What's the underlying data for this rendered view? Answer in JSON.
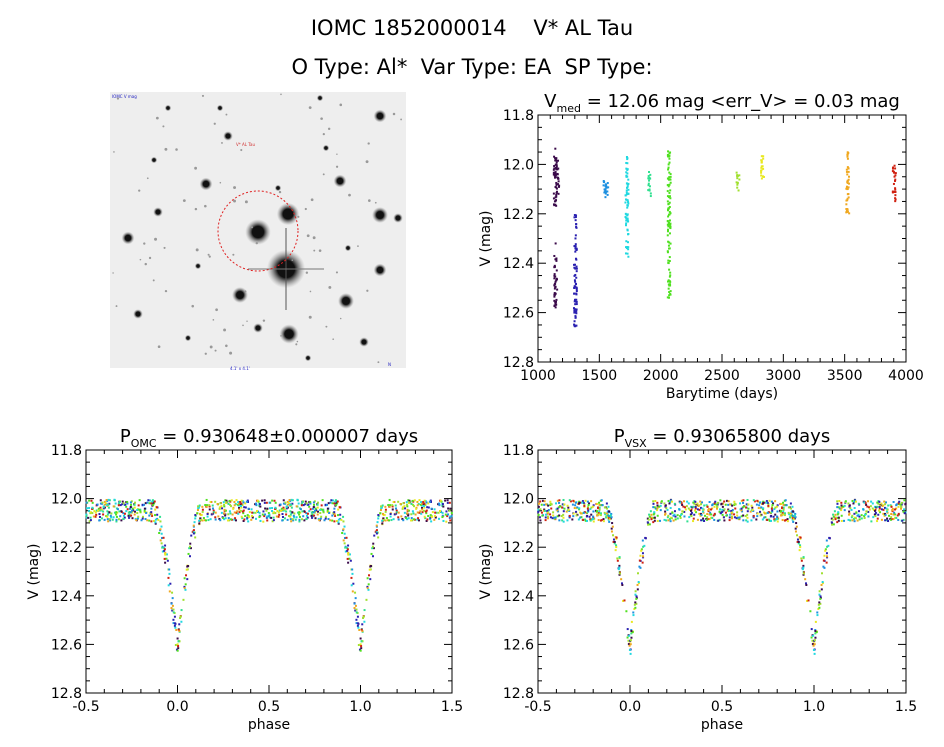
{
  "header": {
    "title": "IOMC 1852000014    V* AL Tau",
    "subtitle": "O Type: Al*  Var Type: EA  SP Type:"
  },
  "finder_image": {
    "tl_label": "IOMC V mag",
    "object_label": "V* AL Tau",
    "bottom_label": "4.1' x 4.1'",
    "br_label": "N",
    "colors": {
      "circle": "#e02020",
      "labels": "#2020c0",
      "object_label": "#d03030"
    }
  },
  "chart_data": [
    {
      "id": "lightcurve",
      "type": "scatter",
      "title_main": "V",
      "title_sub": "med",
      "title_rest": " = 12.06 mag <err_V> = 0.03 mag",
      "xlabel": "Barytime (days)",
      "ylabel": "V (mag)",
      "xlim": [
        1000,
        4000
      ],
      "ylim": [
        12.8,
        11.8
      ],
      "y_reversed": true,
      "xticks": [
        1000,
        1500,
        2000,
        2500,
        3000,
        3500,
        4000
      ],
      "yticks": [
        11.8,
        12.0,
        12.2,
        12.4,
        12.6,
        12.8
      ],
      "tick_labels_x": [
        "1000",
        "1500",
        "2000",
        "2500",
        "3000",
        "3500",
        "4000"
      ],
      "tick_labels_y": [
        "11.8",
        "12.0",
        "12.2",
        "12.4",
        "12.6",
        "12.8"
      ],
      "groups": [
        {
          "x": 1140,
          "ymin": 11.93,
          "ymax": 12.18,
          "color": "#3a0a4a"
        },
        {
          "x": 1145,
          "ymin": 12.32,
          "ymax": 12.58,
          "color": "#3a0a4a"
        },
        {
          "x": 1160,
          "ymin": 11.98,
          "ymax": 12.12,
          "color": "#3a0a4a"
        },
        {
          "x": 1305,
          "ymin": 12.2,
          "ymax": 12.66,
          "color": "#2a20b0"
        },
        {
          "x": 1545,
          "ymin": 12.06,
          "ymax": 12.14,
          "color": "#1e90e0"
        },
        {
          "x": 1560,
          "ymin": 12.07,
          "ymax": 12.13,
          "color": "#1e90e0"
        },
        {
          "x": 1725,
          "ymin": 11.97,
          "ymax": 12.38,
          "color": "#20d8e0"
        },
        {
          "x": 1910,
          "ymin": 12.03,
          "ymax": 12.13,
          "color": "#30e090"
        },
        {
          "x": 2070,
          "ymin": 11.94,
          "ymax": 12.55,
          "color": "#50e020"
        },
        {
          "x": 2630,
          "ymin": 12.03,
          "ymax": 12.11,
          "color": "#a0e030"
        },
        {
          "x": 2830,
          "ymin": 11.96,
          "ymax": 12.07,
          "color": "#e8e820"
        },
        {
          "x": 3525,
          "ymin": 11.94,
          "ymax": 12.2,
          "color": "#f0a820"
        },
        {
          "x": 3905,
          "ymin": 12.0,
          "ymax": 12.15,
          "color": "#d02010"
        }
      ]
    },
    {
      "id": "phase_omc",
      "type": "scatter",
      "title_main": "P",
      "title_sub": "OMC",
      "title_rest": " = 0.930648±0.000007 days",
      "xlabel": "phase",
      "ylabel": "V (mag)",
      "xlim": [
        -0.5,
        1.5
      ],
      "ylim": [
        12.8,
        11.8
      ],
      "y_reversed": true,
      "xticks": [
        -0.5,
        0.0,
        0.5,
        1.0,
        1.5
      ],
      "yticks": [
        11.8,
        12.0,
        12.2,
        12.4,
        12.6,
        12.8
      ],
      "tick_labels_x": [
        "-0.5",
        "0.0",
        "0.5",
        "1.0",
        "1.5"
      ],
      "tick_labels_y": [
        "11.8",
        "12.0",
        "12.2",
        "12.4",
        "12.6",
        "12.8"
      ],
      "baseline_mag": 12.05,
      "min_mag": 12.62,
      "eclipse_phase": 0.0,
      "eclipse_halfwidth": 0.13
    },
    {
      "id": "phase_vsx",
      "type": "scatter",
      "title_main": "P",
      "title_sub": "VSX",
      "title_rest": " = 0.93065800 days",
      "xlabel": "phase",
      "ylabel": "V (mag)",
      "xlim": [
        -0.5,
        1.5
      ],
      "ylim": [
        12.8,
        11.8
      ],
      "y_reversed": true,
      "xticks": [
        -0.5,
        0.0,
        0.5,
        1.0,
        1.5
      ],
      "yticks": [
        11.8,
        12.0,
        12.2,
        12.4,
        12.6,
        12.8
      ],
      "tick_labels_x": [
        "-0.5",
        "0.0",
        "0.5",
        "1.0",
        "1.5"
      ],
      "tick_labels_y": [
        "11.8",
        "12.0",
        "12.2",
        "12.4",
        "12.6",
        "12.8"
      ],
      "baseline_mag": 12.05,
      "min_mag": 12.62,
      "eclipse_phase": 0.0,
      "eclipse_halfwidth": 0.13
    }
  ],
  "series_colors": [
    "#3a0a4a",
    "#2a20b0",
    "#1e90e0",
    "#20d8e0",
    "#30e090",
    "#50e020",
    "#a0e030",
    "#e8e820",
    "#f0a820",
    "#d02010"
  ]
}
